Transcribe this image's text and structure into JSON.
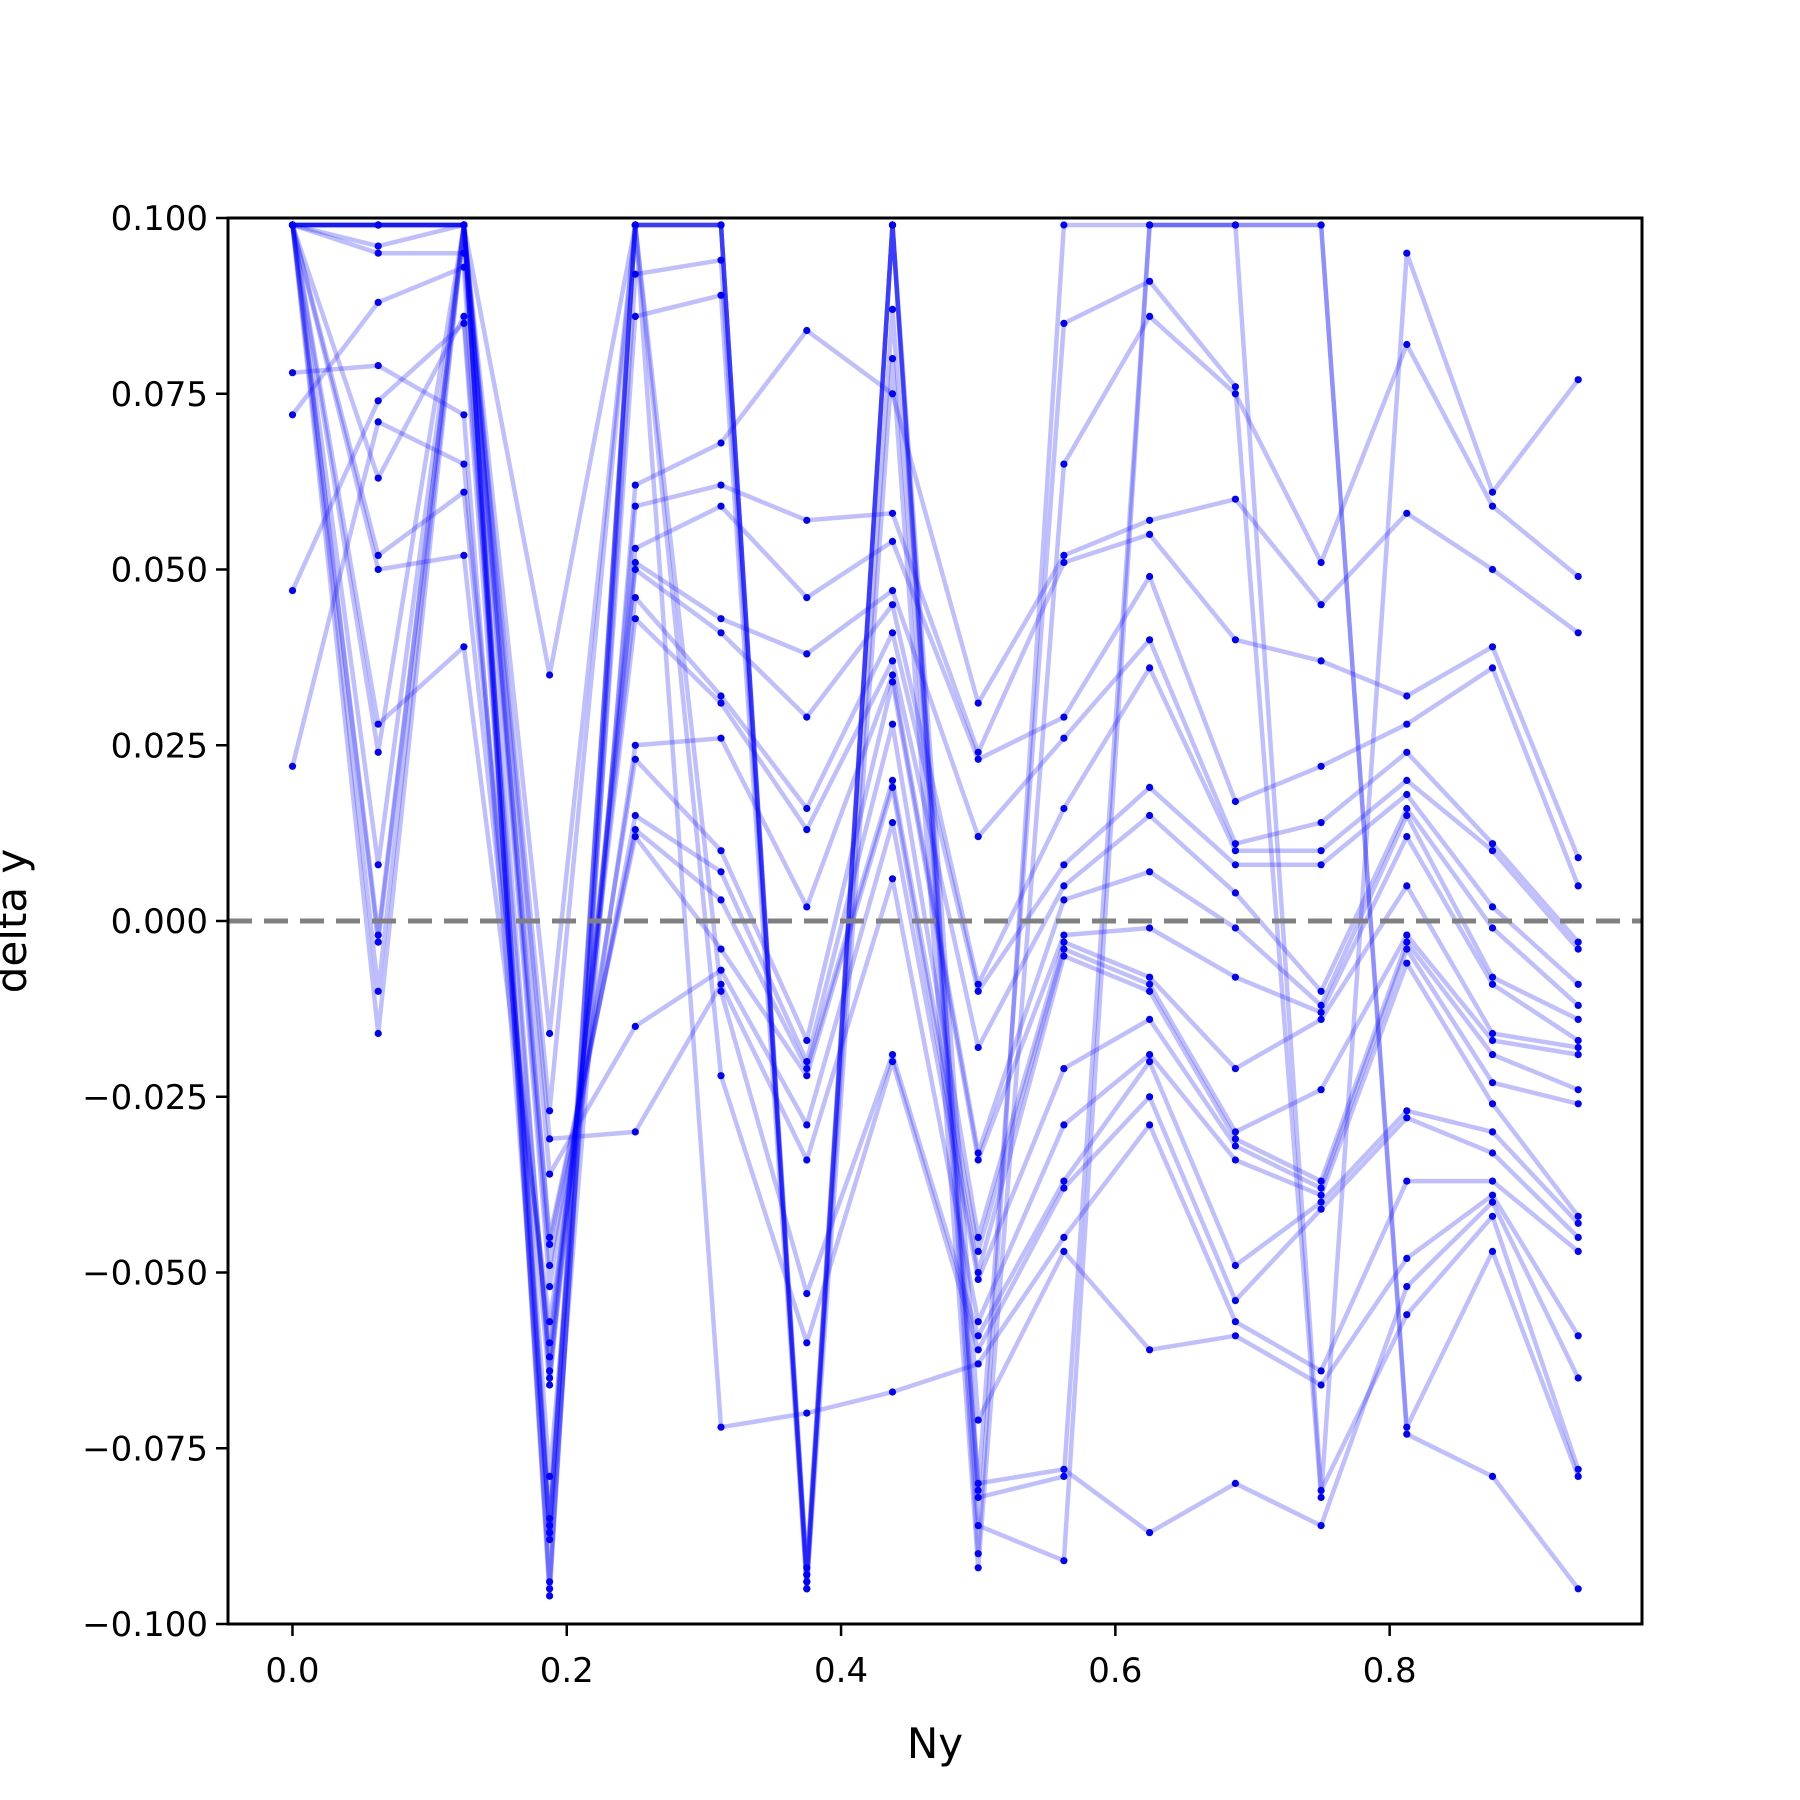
{
  "chart_data": {
    "type": "line",
    "title": "",
    "xlabel": "Ny",
    "ylabel": "delta y",
    "xlim": [
      -0.047,
      0.984
    ],
    "ylim": [
      -0.1,
      0.1
    ],
    "x_ticks": [
      0.0,
      0.2,
      0.4,
      0.6,
      0.8
    ],
    "x_tick_labels": [
      "0.0",
      "0.2",
      "0.4",
      "0.6",
      "0.8"
    ],
    "y_ticks": [
      -0.1,
      -0.075,
      -0.05,
      -0.025,
      0.0,
      0.025,
      0.05,
      0.075,
      0.1
    ],
    "y_tick_labels": [
      "−0.100",
      "−0.075",
      "−0.050",
      "−0.025",
      "0.000",
      "0.025",
      "0.050",
      "0.075",
      "0.100"
    ],
    "reference_line": {
      "y": 0.0,
      "style": "dashed",
      "color": "#808080"
    },
    "line_color": "#0000ff",
    "marker_color": "#0000ff",
    "grid": false,
    "x": [
      0.0,
      0.0625,
      0.125,
      0.1875,
      0.25,
      0.3125,
      0.375,
      0.4375,
      0.5,
      0.5625,
      0.625,
      0.6875,
      0.75,
      0.8125,
      0.875,
      0.9375
    ],
    "series": [
      {
        "values": [
          0.099,
          0.096,
          0.099,
          -0.094,
          0.092,
          0.094,
          -0.093,
          0.087,
          -0.081,
          0.085,
          0.091,
          0.076,
          -0.082,
          0.095,
          0.061,
          0.077
        ]
      },
      {
        "values": [
          0.078,
          0.079,
          0.072,
          -0.086,
          0.086,
          0.089,
          -0.095,
          0.08,
          -0.092,
          0.065,
          0.086,
          0.075,
          0.051,
          0.082,
          0.059,
          0.049
        ]
      },
      {
        "values": [
          0.072,
          0.088,
          0.093,
          -0.088,
          0.062,
          0.068,
          0.084,
          0.075,
          0.031,
          0.052,
          0.057,
          0.06,
          0.045,
          0.058,
          0.05,
          0.041
        ]
      },
      {
        "values": [
          0.047,
          0.074,
          0.085,
          -0.079,
          0.059,
          0.062,
          0.057,
          0.058,
          0.024,
          0.051,
          0.055,
          0.04,
          0.037,
          0.032,
          0.039,
          0.009
        ]
      },
      {
        "values": [
          0.022,
          0.071,
          0.065,
          -0.066,
          0.053,
          0.059,
          0.046,
          0.054,
          0.023,
          0.029,
          0.049,
          0.017,
          0.022,
          0.028,
          0.036,
          0.005
        ]
      },
      {
        "values": [
          0.099,
          0.095,
          0.095,
          -0.065,
          0.051,
          0.043,
          0.038,
          0.047,
          0.012,
          0.026,
          0.04,
          0.011,
          0.014,
          0.024,
          0.011,
          -0.003
        ]
      },
      {
        "values": [
          0.099,
          0.063,
          0.086,
          -0.064,
          0.05,
          0.041,
          0.029,
          0.045,
          -0.009,
          0.016,
          0.036,
          0.01,
          0.01,
          0.02,
          0.01,
          -0.004
        ]
      },
      {
        "values": [
          0.099,
          0.052,
          0.061,
          -0.062,
          0.046,
          0.032,
          0.016,
          0.041,
          -0.01,
          0.008,
          0.019,
          0.008,
          0.008,
          0.018,
          0.002,
          -0.009
        ]
      },
      {
        "values": [
          0.099,
          0.05,
          0.052,
          -0.06,
          0.043,
          0.031,
          0.013,
          0.037,
          -0.018,
          0.005,
          0.015,
          0.004,
          -0.01,
          0.016,
          -0.001,
          -0.012
        ]
      },
      {
        "values": [
          0.099,
          0.028,
          0.039,
          -0.057,
          0.025,
          0.026,
          0.002,
          0.035,
          -0.033,
          0.003,
          0.007,
          -0.001,
          -0.012,
          0.015,
          -0.008,
          -0.014
        ]
      },
      {
        "values": [
          0.099,
          0.024,
          0.099,
          -0.052,
          0.023,
          0.01,
          -0.017,
          0.034,
          -0.034,
          -0.002,
          -0.001,
          -0.008,
          -0.013,
          0.012,
          -0.009,
          -0.017
        ]
      },
      {
        "values": [
          0.099,
          0.008,
          0.099,
          -0.049,
          0.015,
          0.007,
          -0.02,
          0.028,
          -0.045,
          -0.003,
          -0.008,
          -0.021,
          -0.014,
          0.005,
          -0.016,
          -0.018
        ]
      },
      {
        "values": [
          0.099,
          -0.002,
          0.099,
          -0.046,
          0.013,
          0.003,
          -0.021,
          0.02,
          -0.047,
          -0.004,
          -0.009,
          -0.03,
          -0.024,
          -0.002,
          -0.017,
          -0.019
        ]
      },
      {
        "values": [
          0.099,
          -0.003,
          0.099,
          -0.045,
          0.012,
          -0.004,
          -0.022,
          0.019,
          -0.05,
          -0.005,
          -0.01,
          -0.031,
          -0.037,
          -0.003,
          -0.019,
          -0.024
        ]
      },
      {
        "values": [
          0.099,
          -0.01,
          0.099,
          -0.036,
          -0.015,
          -0.007,
          -0.029,
          0.014,
          -0.051,
          -0.021,
          -0.014,
          -0.032,
          -0.038,
          -0.004,
          -0.023,
          -0.026
        ]
      },
      {
        "values": [
          0.099,
          -0.016,
          0.099,
          -0.031,
          -0.03,
          -0.009,
          -0.034,
          0.006,
          -0.057,
          -0.029,
          -0.019,
          -0.034,
          -0.039,
          -0.006,
          -0.026,
          -0.042
        ]
      },
      {
        "values": [
          0.099,
          0.099,
          0.099,
          -0.027,
          0.099,
          -0.01,
          -0.053,
          -0.019,
          -0.059,
          -0.037,
          -0.02,
          -0.049,
          -0.04,
          -0.027,
          -0.03,
          -0.043
        ]
      },
      {
        "values": [
          0.099,
          0.099,
          0.099,
          -0.016,
          0.099,
          -0.022,
          -0.06,
          -0.02,
          -0.061,
          -0.038,
          -0.025,
          -0.054,
          -0.041,
          -0.028,
          -0.033,
          -0.045
        ]
      },
      {
        "values": [
          0.099,
          0.099,
          0.099,
          0.035,
          0.099,
          -0.072,
          -0.07,
          -0.067,
          -0.063,
          -0.045,
          -0.029,
          -0.057,
          -0.064,
          -0.037,
          -0.037,
          -0.047
        ]
      },
      {
        "values": [
          0.099,
          0.099,
          0.099,
          -0.095,
          0.099,
          0.099,
          -0.094,
          0.099,
          -0.071,
          -0.047,
          -0.061,
          -0.059,
          -0.066,
          -0.048,
          -0.039,
          -0.059
        ]
      },
      {
        "values": [
          0.099,
          0.099,
          0.099,
          -0.087,
          0.099,
          0.099,
          -0.092,
          0.099,
          -0.08,
          -0.078,
          -0.087,
          -0.08,
          -0.086,
          -0.052,
          -0.04,
          -0.065
        ]
      },
      {
        "values": [
          0.099,
          0.099,
          0.099,
          -0.096,
          0.099,
          0.099,
          -0.093,
          0.099,
          -0.082,
          -0.079,
          0.099,
          0.099,
          -0.081,
          -0.056,
          -0.042,
          -0.078
        ]
      },
      {
        "values": [
          0.099,
          0.099,
          0.099,
          -0.085,
          0.099,
          0.099,
          -0.094,
          0.099,
          -0.086,
          -0.091,
          0.099,
          0.099,
          0.099,
          -0.072,
          -0.047,
          -0.079
        ]
      },
      {
        "values": [
          0.099,
          0.099,
          0.099,
          -0.087,
          0.099,
          0.099,
          -0.095,
          0.099,
          -0.09,
          0.099,
          0.099,
          0.099,
          0.099,
          -0.073,
          -0.079,
          -0.095
        ]
      }
    ]
  }
}
